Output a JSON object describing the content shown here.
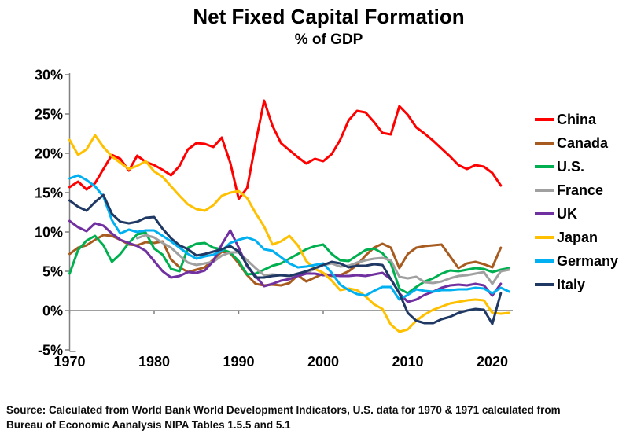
{
  "chart_data": {
    "type": "line",
    "title": "Net Fixed Capital Formation",
    "subtitle": "% of GDP",
    "grid": "off",
    "legend_position": "right",
    "ylim": [
      -5,
      30
    ],
    "ytick_values": [
      30,
      25,
      20,
      15,
      10,
      5,
      0,
      -5
    ],
    "ytick_labels": [
      "30%",
      "25%",
      "20%",
      "15%",
      "10%",
      "5%",
      "0%",
      "-5%"
    ],
    "xtick_values": [
      1970,
      1980,
      1990,
      2000,
      2010,
      2020
    ],
    "xtick_labels": [
      "1970",
      "1980",
      "1990",
      "2000",
      "2010",
      "2020"
    ],
    "x_axis_at_value": 0,
    "axis_color": "#808080",
    "text_color": "#000000",
    "series": [
      {
        "name": "China",
        "color": "#FF0000",
        "start_year": 1970,
        "values": [
          15.7,
          16.4,
          15.4,
          16.2,
          18.0,
          19.8,
          19.3,
          17.8,
          19.7,
          18.9,
          18.5,
          17.9,
          17.2,
          18.4,
          20.5,
          21.3,
          21.2,
          20.8,
          22.0,
          18.8,
          14.2,
          15.6,
          21.3,
          26.7,
          23.5,
          21.3,
          20.4,
          19.5,
          18.7,
          19.3,
          19.0,
          19.9,
          21.7,
          24.2,
          25.4,
          25.2,
          24.0,
          22.6,
          22.4,
          26.0,
          24.9,
          23.3,
          22.5,
          21.6,
          20.6,
          19.6,
          18.5,
          18.0,
          18.5,
          18.3,
          17.5,
          15.9
        ]
      },
      {
        "name": "Canada",
        "color": "#A85B1E",
        "start_year": 1970,
        "values": [
          7.2,
          8.0,
          8.3,
          9.0,
          9.6,
          9.5,
          9.0,
          8.4,
          8.3,
          8.7,
          8.6,
          8.8,
          6.5,
          5.5,
          4.9,
          5.2,
          5.5,
          6.5,
          7.5,
          7.3,
          6.0,
          4.5,
          3.4,
          3.2,
          3.3,
          3.2,
          3.5,
          4.5,
          3.7,
          4.2,
          4.7,
          4.4,
          4.5,
          5.0,
          5.8,
          7.0,
          8.0,
          8.5,
          8.0,
          5.4,
          7.2,
          8.0,
          8.2,
          8.3,
          8.4,
          6.9,
          5.4,
          6.0,
          6.2,
          5.9,
          5.5,
          8.0
        ]
      },
      {
        "name": "U.S.",
        "color": "#00B050",
        "start_year": 1970,
        "values": [
          4.7,
          7.7,
          8.9,
          9.5,
          8.3,
          6.2,
          7.2,
          8.6,
          9.7,
          9.9,
          7.9,
          7.1,
          5.3,
          5.0,
          8.0,
          8.5,
          8.6,
          8.0,
          7.8,
          7.4,
          6.3,
          4.6,
          4.7,
          5.2,
          5.7,
          6.0,
          6.6,
          7.2,
          7.8,
          8.2,
          8.4,
          7.2,
          6.4,
          6.3,
          7.0,
          7.7,
          7.9,
          7.3,
          6.0,
          2.8,
          2.2,
          3.0,
          3.7,
          4.1,
          4.7,
          5.1,
          5.0,
          5.2,
          5.4,
          5.3,
          4.9,
          5.2,
          5.4
        ]
      },
      {
        "name": "France",
        "color": "#A0A0A0",
        "start_year": 1978,
        "values": [
          9.2,
          9.6,
          9.3,
          8.6,
          8.0,
          7.0,
          6.1,
          5.8,
          6.0,
          6.2,
          7.0,
          7.4,
          7.4,
          6.4,
          5.4,
          4.5,
          4.6,
          4.5,
          4.4,
          4.4,
          4.8,
          5.3,
          5.8,
          6.0,
          5.6,
          5.7,
          6.1,
          6.4,
          6.6,
          6.7,
          6.4,
          4.3,
          4.1,
          4.3,
          3.6,
          3.5,
          3.7,
          4.1,
          4.4,
          4.5,
          4.7,
          4.9,
          3.4,
          5.0,
          5.2
        ]
      },
      {
        "name": "UK",
        "color": "#7030A0",
        "start_year": 1970,
        "values": [
          11.4,
          10.6,
          10.1,
          11.1,
          10.8,
          9.8,
          9.0,
          8.6,
          8.2,
          7.6,
          6.3,
          5.0,
          4.2,
          4.4,
          4.9,
          4.8,
          5.1,
          6.3,
          8.4,
          10.2,
          8.0,
          5.6,
          4.4,
          3.1,
          3.4,
          3.8,
          4.0,
          4.4,
          4.7,
          4.7,
          4.5,
          4.5,
          4.4,
          4.4,
          4.5,
          4.4,
          4.6,
          4.8,
          4.0,
          2.2,
          1.1,
          1.4,
          2.0,
          2.4,
          2.9,
          3.2,
          3.3,
          3.2,
          3.4,
          3.2,
          1.9,
          3.4
        ]
      },
      {
        "name": "Japan",
        "color": "#FFC000",
        "start_year": 1970,
        "values": [
          21.7,
          19.8,
          20.5,
          22.3,
          20.8,
          19.6,
          18.8,
          18.0,
          18.4,
          19.0,
          17.7,
          17.0,
          15.8,
          14.6,
          13.5,
          12.9,
          12.7,
          13.4,
          14.6,
          15.0,
          15.2,
          14.3,
          12.4,
          10.7,
          8.4,
          8.8,
          9.5,
          8.3,
          6.3,
          5.3,
          4.8,
          3.8,
          2.6,
          2.8,
          2.6,
          1.8,
          0.8,
          0.2,
          -1.8,
          -2.7,
          -2.4,
          -1.3,
          -0.5,
          0.1,
          0.5,
          0.9,
          1.1,
          1.3,
          1.4,
          1.3,
          -0.3,
          -0.4,
          -0.3
        ]
      },
      {
        "name": "Germany",
        "color": "#00B0F0",
        "start_year": 1970,
        "values": [
          16.8,
          17.2,
          16.6,
          15.8,
          14.5,
          11.5,
          9.8,
          10.3,
          10.0,
          10.2,
          10.2,
          9.5,
          8.8,
          8.0,
          7.2,
          6.6,
          6.9,
          7.1,
          7.6,
          8.6,
          9.0,
          9.3,
          8.9,
          7.8,
          7.6,
          6.8,
          6.0,
          5.5,
          5.6,
          5.8,
          6.0,
          4.8,
          3.3,
          2.6,
          2.1,
          1.9,
          2.5,
          3.0,
          3.0,
          1.4,
          2.0,
          2.7,
          2.5,
          2.4,
          2.6,
          2.6,
          2.7,
          2.7,
          2.9,
          2.8,
          2.2,
          2.9,
          2.4
        ]
      },
      {
        "name": "Italy",
        "color": "#1F3864",
        "start_year": 1970,
        "values": [
          14.0,
          13.2,
          12.7,
          13.8,
          14.7,
          12.3,
          11.3,
          11.1,
          11.3,
          11.8,
          11.9,
          10.4,
          9.2,
          8.3,
          7.8,
          7.0,
          7.2,
          7.5,
          7.8,
          8.2,
          7.5,
          5.8,
          4.2,
          4.2,
          4.4,
          4.5,
          4.4,
          4.7,
          5.0,
          5.4,
          5.8,
          6.2,
          6.0,
          5.5,
          5.7,
          5.7,
          5.9,
          5.8,
          4.0,
          2.2,
          -0.3,
          -1.3,
          -1.6,
          -1.6,
          -1.1,
          -0.8,
          -0.3,
          0.0,
          0.2,
          0.1,
          -1.7,
          2.2
        ]
      }
    ]
  },
  "source": {
    "line1": "Source:  Calculated from World Bank World Development Indicators, U.S. data for 1970 & 1971 calculated from",
    "line2": "Bureau of Economic Aanalysis NIPA Tables 1.5.5 and 5.1"
  }
}
